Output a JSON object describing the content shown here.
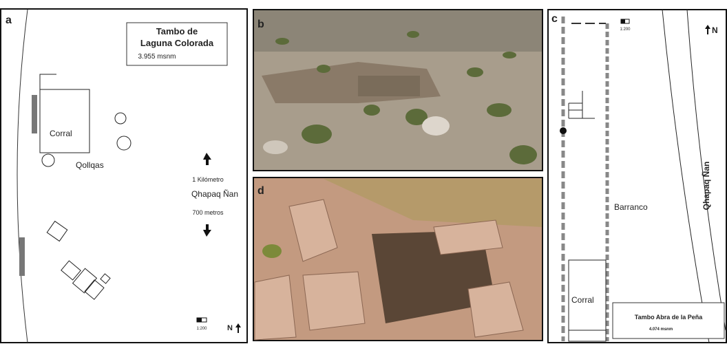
{
  "panels": {
    "a": {
      "label": "a",
      "title_lines": [
        "Tambo de",
        "Laguna Colorada"
      ],
      "elevation": "3.955 msnm",
      "corral": "Corral",
      "qollqas": "Qollqas",
      "distance_north": "1 Kilómetro",
      "road": "Qhapaq Ñan",
      "distance_south": "700 metros",
      "scale": "1:200",
      "north": "N"
    },
    "b": {
      "label": "b"
    },
    "c": {
      "label": "c",
      "scale": "1:200",
      "north": "N",
      "road": "Qhapaq Ñan",
      "barranco": "Barranco",
      "corral": "Corral",
      "site": "Tambo Abra de la Peña",
      "elevation": "4.074 msnm"
    },
    "d": {
      "label": "d"
    }
  }
}
